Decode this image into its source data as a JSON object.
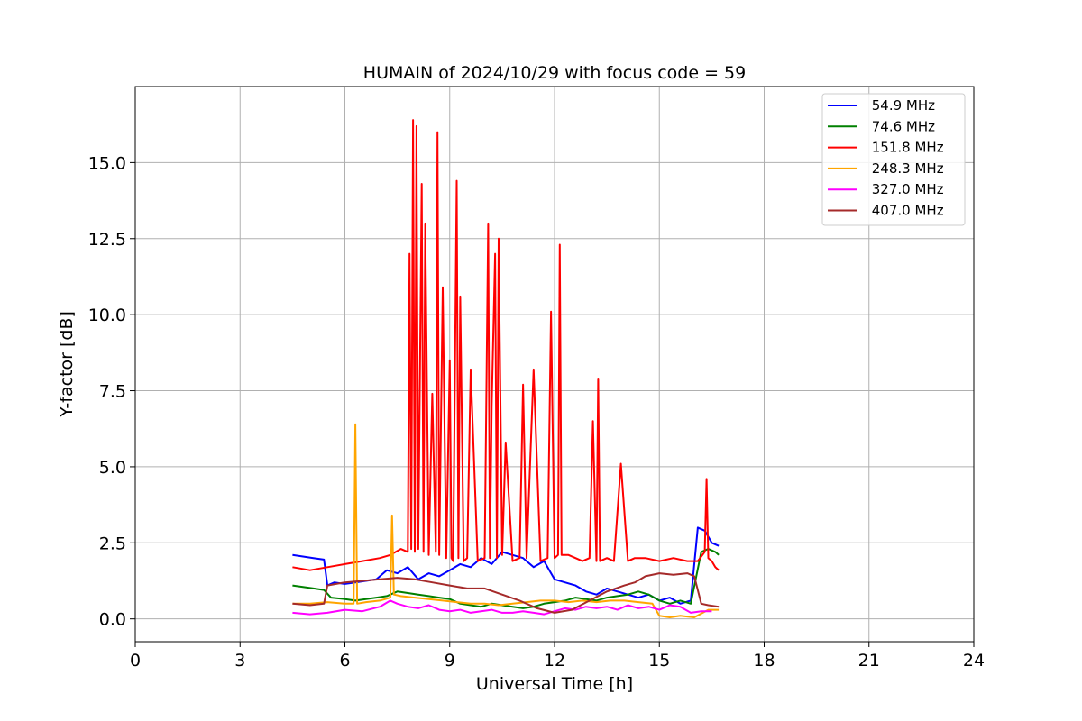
{
  "chart_data": {
    "type": "line",
    "title": "HUMAIN of 2024/10/29 with focus code = 59",
    "xlabel": "Universal Time [h]",
    "ylabel": "Y-factor [dB]",
    "xlim": [
      0,
      24
    ],
    "ylim": [
      -0.75,
      17.5
    ],
    "xticks": [
      0,
      3,
      6,
      9,
      12,
      15,
      18,
      21,
      24
    ],
    "yticks": [
      0.0,
      2.5,
      5.0,
      7.5,
      10.0,
      12.5,
      15.0
    ],
    "ytick_labels": [
      "0.0",
      "2.5",
      "5.0",
      "7.5",
      "10.0",
      "12.5",
      "15.0"
    ],
    "grid": true,
    "legend_position": "top-right",
    "series": [
      {
        "name": " 54.9 MHz",
        "color": "#0000ff",
        "x": [
          4.5,
          4.8,
          5.1,
          5.4,
          5.5,
          5.7,
          6.0,
          6.3,
          6.6,
          6.9,
          7.2,
          7.5,
          7.8,
          8.1,
          8.4,
          8.7,
          9.0,
          9.3,
          9.6,
          9.9,
          10.2,
          10.5,
          10.8,
          11.1,
          11.4,
          11.7,
          12.0,
          12.3,
          12.6,
          12.9,
          13.2,
          13.5,
          13.8,
          14.1,
          14.4,
          14.7,
          15.0,
          15.3,
          15.6,
          15.9,
          16.1,
          16.3,
          16.5,
          16.7
        ],
        "y": [
          2.1,
          2.05,
          2.0,
          1.95,
          1.1,
          1.2,
          1.15,
          1.2,
          1.25,
          1.3,
          1.6,
          1.5,
          1.7,
          1.3,
          1.5,
          1.4,
          1.6,
          1.8,
          1.7,
          2.0,
          1.8,
          2.2,
          2.1,
          2.0,
          1.7,
          1.9,
          1.3,
          1.2,
          1.1,
          0.9,
          0.8,
          1.0,
          0.9,
          0.8,
          0.7,
          0.8,
          0.6,
          0.7,
          0.5,
          0.6,
          3.0,
          2.9,
          2.5,
          2.4
        ]
      },
      {
        "name": " 74.6 MHz",
        "color": "#008000",
        "x": [
          4.5,
          4.8,
          5.1,
          5.4,
          5.6,
          6.0,
          6.3,
          6.6,
          6.9,
          7.2,
          7.5,
          7.8,
          8.1,
          8.4,
          8.7,
          9.0,
          9.3,
          9.6,
          9.9,
          10.2,
          10.5,
          10.8,
          11.1,
          11.4,
          11.7,
          12.0,
          12.3,
          12.6,
          12.9,
          13.2,
          13.5,
          13.8,
          14.1,
          14.4,
          14.7,
          15.0,
          15.3,
          15.6,
          15.9,
          16.2,
          16.4,
          16.6,
          16.7
        ],
        "y": [
          1.1,
          1.05,
          1.0,
          0.95,
          0.7,
          0.65,
          0.6,
          0.65,
          0.7,
          0.75,
          0.9,
          0.85,
          0.8,
          0.75,
          0.7,
          0.65,
          0.5,
          0.45,
          0.4,
          0.5,
          0.45,
          0.4,
          0.35,
          0.4,
          0.5,
          0.55,
          0.6,
          0.7,
          0.65,
          0.6,
          0.7,
          0.75,
          0.8,
          0.9,
          0.8,
          0.6,
          0.5,
          0.6,
          0.5,
          2.2,
          2.3,
          2.2,
          2.1
        ]
      },
      {
        "name": " 151.8 MHz",
        "color": "#ff0000",
        "x": [
          4.5,
          5.0,
          5.5,
          6.0,
          6.5,
          7.0,
          7.3,
          7.6,
          7.8,
          7.85,
          7.9,
          7.95,
          8.0,
          8.05,
          8.1,
          8.2,
          8.25,
          8.3,
          8.4,
          8.5,
          8.6,
          8.65,
          8.7,
          8.8,
          8.9,
          9.0,
          9.05,
          9.1,
          9.2,
          9.25,
          9.3,
          9.4,
          9.5,
          9.6,
          9.8,
          10.0,
          10.1,
          10.15,
          10.2,
          10.3,
          10.35,
          10.4,
          10.5,
          10.6,
          10.8,
          11.0,
          11.1,
          11.2,
          11.4,
          11.6,
          11.8,
          11.9,
          12.0,
          12.1,
          12.15,
          12.2,
          12.4,
          12.6,
          12.8,
          13.0,
          13.1,
          13.2,
          13.25,
          13.3,
          13.5,
          13.7,
          13.9,
          14.1,
          14.3,
          14.6,
          15.0,
          15.4,
          15.8,
          16.1,
          16.3,
          16.35,
          16.4,
          16.5,
          16.6,
          16.7
        ],
        "y": [
          1.7,
          1.6,
          1.7,
          1.8,
          1.9,
          2.0,
          2.1,
          2.3,
          2.2,
          12.0,
          2.3,
          16.4,
          2.2,
          16.2,
          2.3,
          14.3,
          2.2,
          13.0,
          2.1,
          7.4,
          2.2,
          16.0,
          2.1,
          10.9,
          2.0,
          8.5,
          2.0,
          1.9,
          14.4,
          2.0,
          10.6,
          1.9,
          2.0,
          8.2,
          1.9,
          2.0,
          13.0,
          2.0,
          7.0,
          12.0,
          2.0,
          12.5,
          2.1,
          5.8,
          1.9,
          2.0,
          7.7,
          2.0,
          8.2,
          1.9,
          2.0,
          10.1,
          2.0,
          2.1,
          12.3,
          2.1,
          2.1,
          2.0,
          1.9,
          2.0,
          6.5,
          1.9,
          7.9,
          1.9,
          2.0,
          1.9,
          5.1,
          1.9,
          2.0,
          2.0,
          1.9,
          2.0,
          1.9,
          1.9,
          2.2,
          4.6,
          2.0,
          1.9,
          1.7,
          1.6
        ]
      },
      {
        "name": " 248.3 MHz",
        "color": "#ffa500",
        "x": [
          4.5,
          5.0,
          5.5,
          6.0,
          6.25,
          6.3,
          6.35,
          6.6,
          7.0,
          7.3,
          7.35,
          7.4,
          7.6,
          8.0,
          8.4,
          8.8,
          9.2,
          9.6,
          10.0,
          10.4,
          10.8,
          11.2,
          11.6,
          12.0,
          12.4,
          12.8,
          13.2,
          13.6,
          14.0,
          14.4,
          14.8,
          15.0,
          15.3,
          15.6,
          16.0,
          16.4,
          16.7
        ],
        "y": [
          0.5,
          0.5,
          0.55,
          0.5,
          0.5,
          6.4,
          0.5,
          0.55,
          0.6,
          0.7,
          3.4,
          0.8,
          0.75,
          0.7,
          0.65,
          0.6,
          0.55,
          0.5,
          0.5,
          0.45,
          0.5,
          0.55,
          0.6,
          0.6,
          0.55,
          0.6,
          0.55,
          0.6,
          0.6,
          0.55,
          0.5,
          0.1,
          0.05,
          0.1,
          0.05,
          0.3,
          0.3
        ]
      },
      {
        "name": " 327.0 MHz",
        "color": "#ff00ff",
        "x": [
          4.5,
          5.0,
          5.5,
          6.0,
          6.5,
          7.0,
          7.3,
          7.5,
          7.8,
          8.1,
          8.4,
          8.7,
          9.0,
          9.3,
          9.6,
          9.9,
          10.2,
          10.5,
          10.8,
          11.1,
          11.4,
          11.7,
          12.0,
          12.3,
          12.6,
          12.9,
          13.2,
          13.5,
          13.8,
          14.1,
          14.4,
          14.7,
          15.0,
          15.3,
          15.6,
          15.9,
          16.2,
          16.5
        ],
        "y": [
          0.2,
          0.15,
          0.2,
          0.3,
          0.25,
          0.4,
          0.6,
          0.5,
          0.4,
          0.35,
          0.45,
          0.3,
          0.25,
          0.3,
          0.2,
          0.25,
          0.3,
          0.2,
          0.2,
          0.25,
          0.2,
          0.15,
          0.25,
          0.35,
          0.3,
          0.4,
          0.35,
          0.4,
          0.3,
          0.45,
          0.35,
          0.4,
          0.3,
          0.45,
          0.4,
          0.2,
          0.25,
          0.25
        ]
      },
      {
        "name": " 407.0 MHz",
        "color": "#a52a2a",
        "x": [
          4.5,
          5.0,
          5.4,
          5.5,
          6.0,
          6.5,
          7.0,
          7.5,
          8.0,
          8.5,
          9.0,
          9.5,
          10.0,
          10.5,
          11.0,
          11.5,
          12.0,
          12.5,
          13.0,
          13.5,
          14.0,
          14.3,
          14.6,
          15.0,
          15.4,
          15.8,
          16.0,
          16.2,
          16.4,
          16.7
        ],
        "y": [
          0.5,
          0.45,
          0.5,
          1.1,
          1.2,
          1.25,
          1.3,
          1.35,
          1.3,
          1.2,
          1.1,
          1.0,
          1.0,
          0.8,
          0.6,
          0.35,
          0.2,
          0.3,
          0.6,
          0.9,
          1.1,
          1.2,
          1.4,
          1.5,
          1.45,
          1.5,
          1.4,
          0.5,
          0.45,
          0.4
        ]
      }
    ]
  }
}
